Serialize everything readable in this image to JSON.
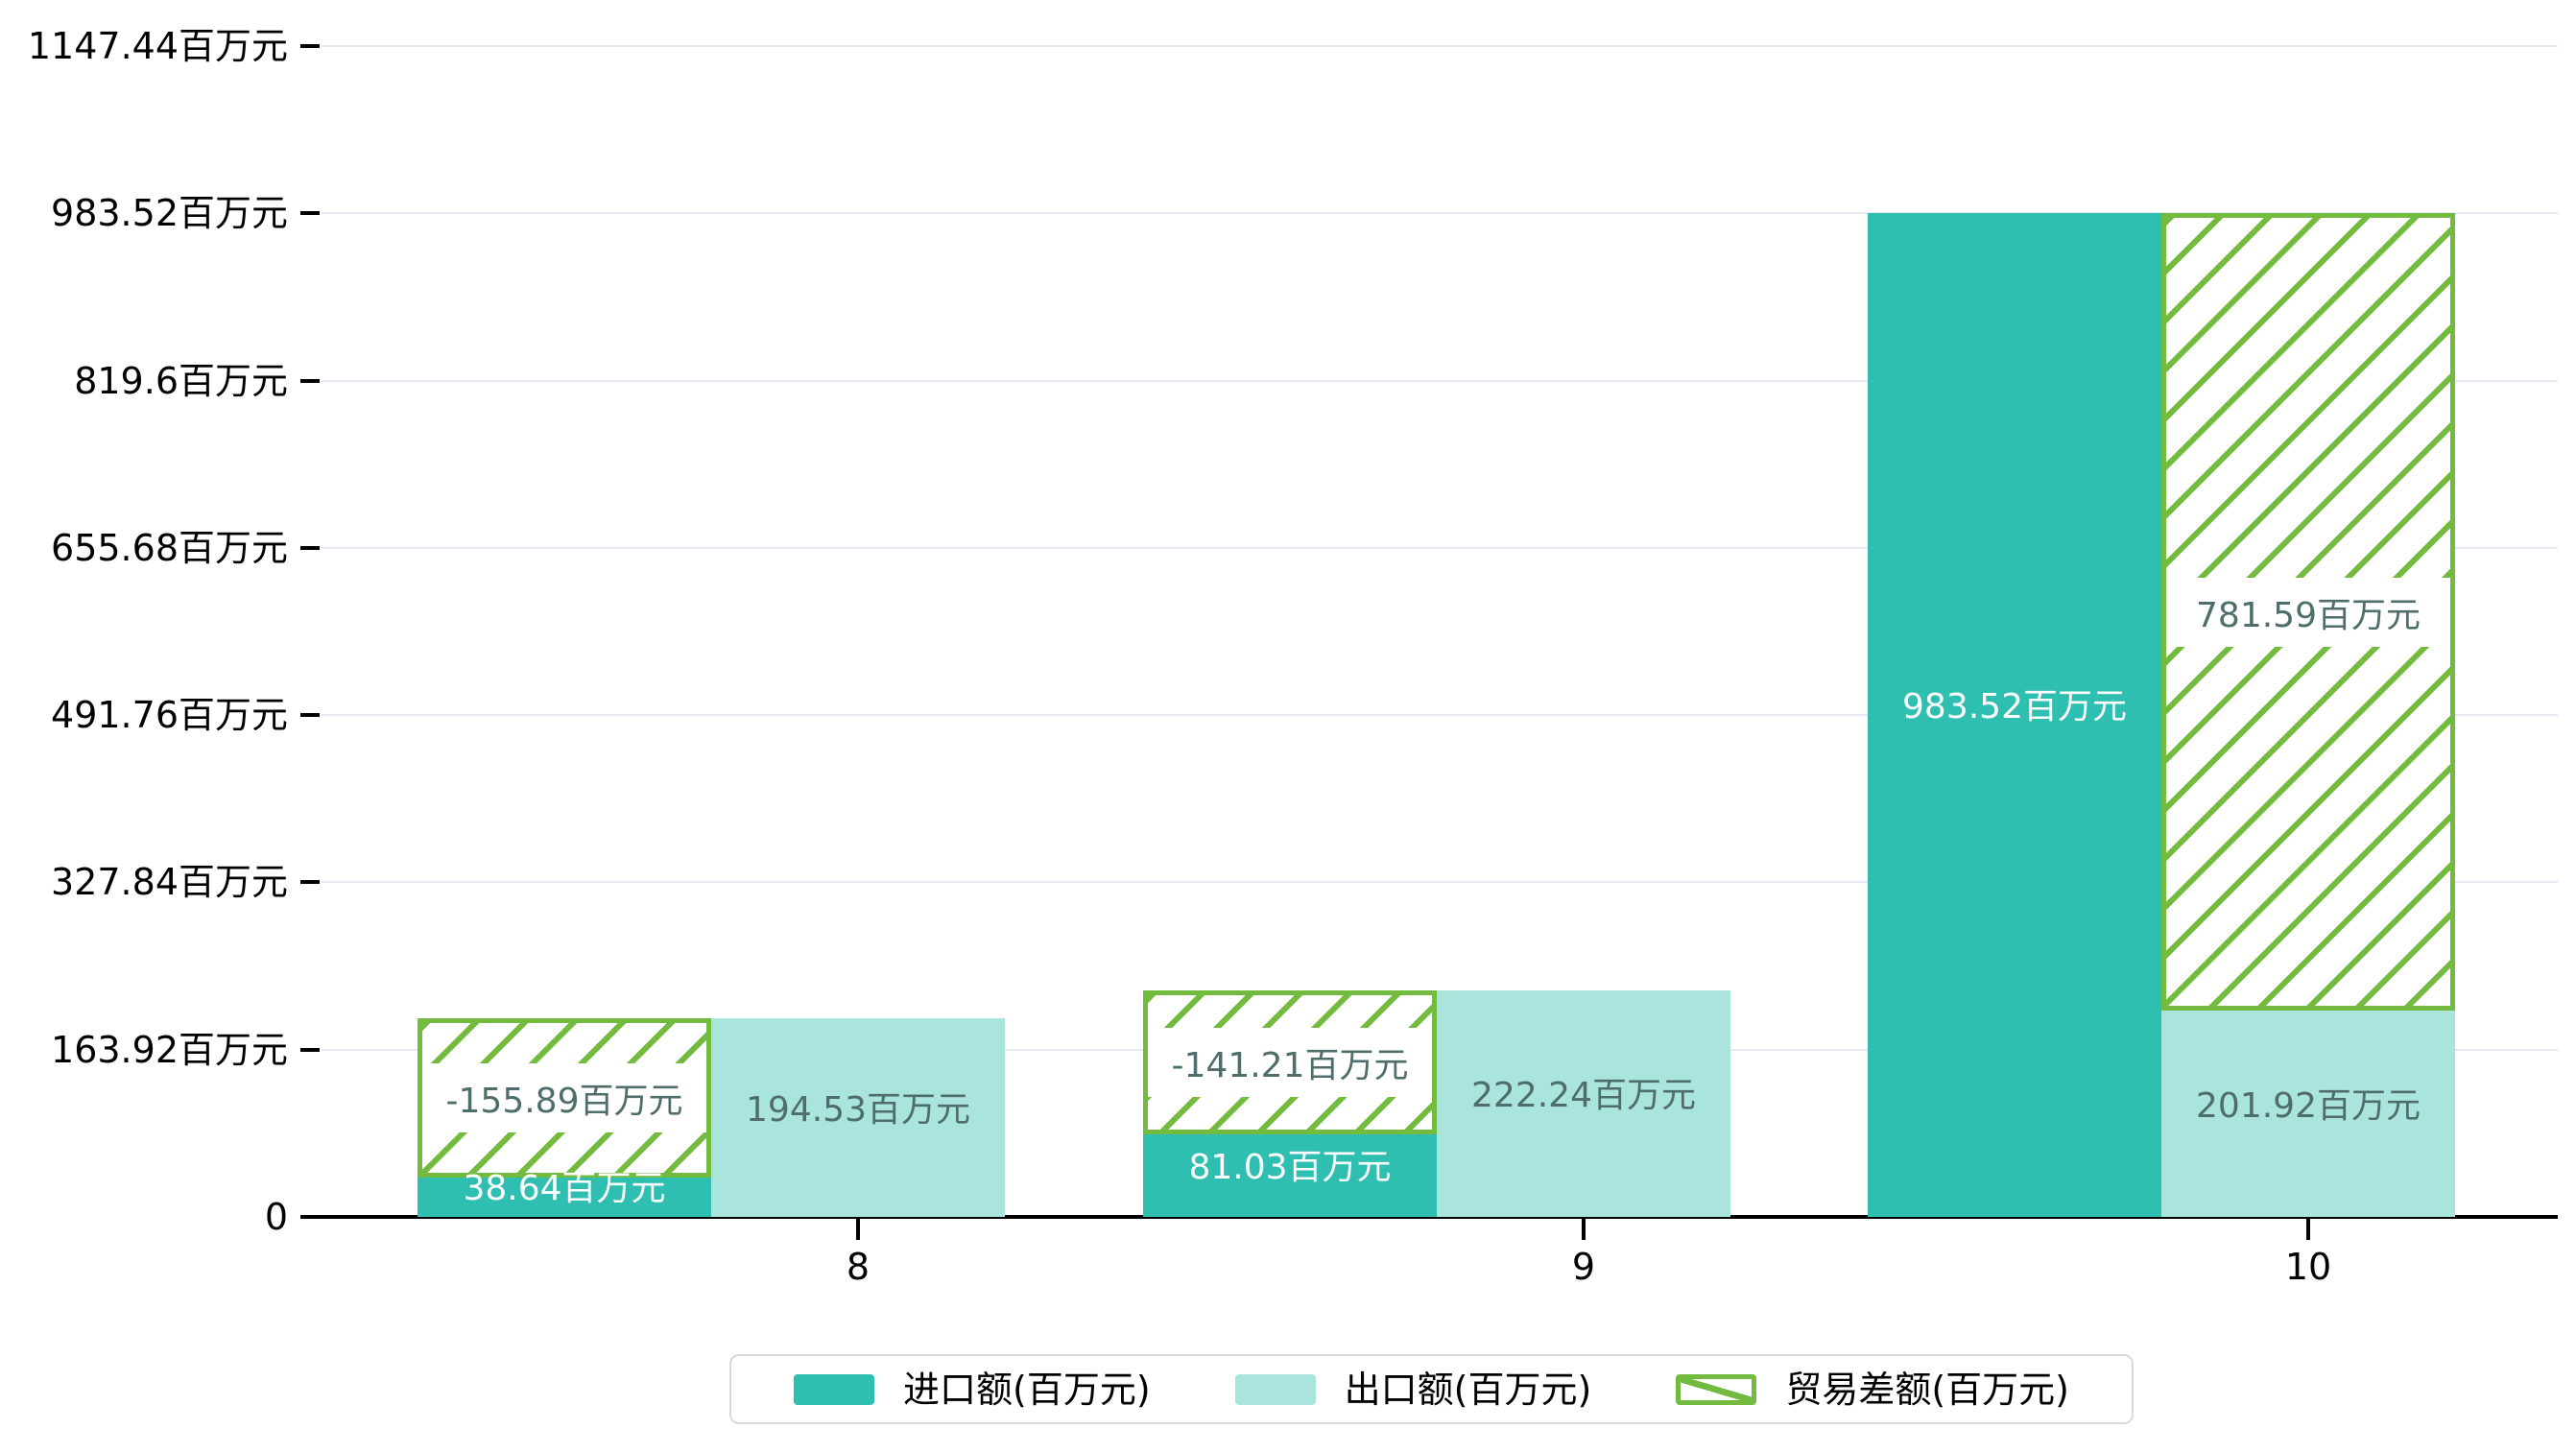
{
  "chart_data": {
    "type": "bar",
    "title": "",
    "xlabel": "",
    "ylabel": "",
    "unit": "百万元",
    "categories": [
      "8",
      "9",
      "10"
    ],
    "series": [
      {
        "name": "进口额(百万元)",
        "color": "#2fbfb1",
        "style": "solid",
        "values": [
          38.64,
          81.03,
          983.52
        ]
      },
      {
        "name": "出口额(百万元)",
        "color": "#a9e5dc",
        "style": "solid",
        "values": [
          194.53,
          222.24,
          201.92
        ]
      },
      {
        "name": "贸易差额(百万元)",
        "color": "#72bb3e",
        "style": "hatched",
        "values": [
          -155.89,
          -141.21,
          781.59
        ]
      }
    ],
    "bar_labels": {
      "import": [
        "38.64百万元",
        "81.03百万元",
        "983.52百万元"
      ],
      "export": [
        "194.53百万元",
        "222.24百万元",
        "201.92百万元"
      ],
      "diff": [
        "-155.89百万元",
        "-141.21百万元",
        "781.59百万元"
      ]
    },
    "y_ticks": [
      {
        "value": 0,
        "label": "0"
      },
      {
        "value": 163.92,
        "label": "163.92百万元"
      },
      {
        "value": 327.84,
        "label": "327.84百万元"
      },
      {
        "value": 491.76,
        "label": "491.76百万元"
      },
      {
        "value": 655.68,
        "label": "655.68百万元"
      },
      {
        "value": 819.6,
        "label": "819.6百万元"
      },
      {
        "value": 983.52,
        "label": "983.52百万元"
      },
      {
        "value": 1147.44,
        "label": "1147.44百万元"
      }
    ],
    "ylim": [
      0,
      1147.44
    ],
    "grid": true,
    "legend_position": "bottom"
  },
  "legend": {
    "items": [
      {
        "label": "进口额(百万元)",
        "color": "#2fbfb1",
        "style": "solid"
      },
      {
        "label": "出口额(百万元)",
        "color": "#a9e5dc",
        "style": "solid"
      },
      {
        "label": "贸易差额(百万元)",
        "color": "#72bb3e",
        "style": "hatched"
      }
    ]
  },
  "colors": {
    "import_bar": "#2fbfb1",
    "export_bar": "#a9e5dc",
    "hatch_green": "#72bb3e",
    "grid_line": "#e4e9f3",
    "axis_line": "#000000",
    "label_on_light": "#4f6e6b",
    "label_on_dark": "#ffffff",
    "legend_border": "#d9d9d9"
  }
}
